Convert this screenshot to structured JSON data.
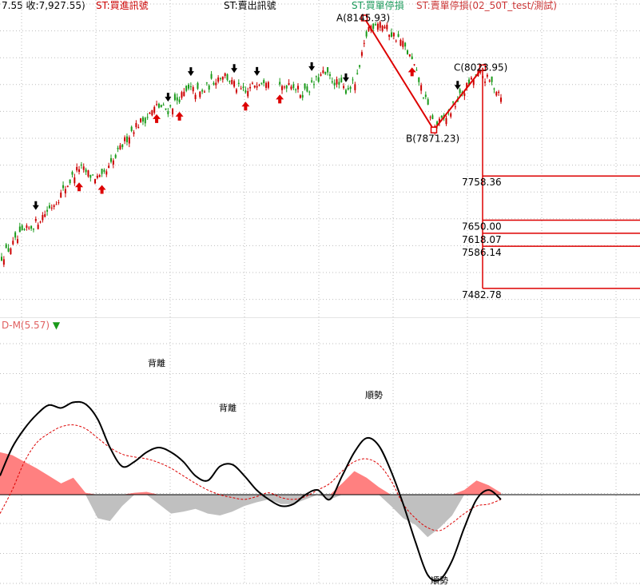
{
  "header": {
    "price_info": "7.55 收:7,927.55)",
    "signals": [
      {
        "text": "ST:買進訊號",
        "color": "#cc0000"
      },
      {
        "text": "ST:賣出訊號",
        "color": "#000000"
      },
      {
        "text": "ST:買單停損",
        "color": "#1a9a5a"
      },
      {
        "text": "ST:賣單停損(02_50T_test/測試)",
        "color": "#cc3333"
      }
    ]
  },
  "oscillator_panel": {
    "label": "D-M(5.57)",
    "label_color": "#e06060",
    "marker_color": "#1a9a1a"
  },
  "colors": {
    "up_candle": "#cc0000",
    "down_candle": "#1a9a1a",
    "abc_line": "#dd0000",
    "level_box": "#dd0000",
    "grid": "#bdbdbd",
    "hist_pos": "#ff8080",
    "hist_neg": "#c0c0c0",
    "osc_line": "#000000",
    "osc_signal": "#dd0000"
  },
  "chart_data": [
    {
      "type": "candlestick",
      "x": "bar index",
      "abc_pattern": [
        {
          "label": "A(8145.93)",
          "price": 8145.93
        },
        {
          "label": "B(7871.23)",
          "price": 7871.23
        },
        {
          "label": "C(8023.95)",
          "price": 8023.95
        }
      ],
      "projection_levels": [
        {
          "label": "7758.36",
          "value": 7758.36
        },
        {
          "label": "7650.00",
          "value": 7650.0
        },
        {
          "label": "7618.07",
          "value": 7618.07
        },
        {
          "label": "7586.14",
          "value": 7586.14
        },
        {
          "label": "7482.78",
          "value": 7482.78
        }
      ],
      "close_path": [
        7560,
        7590,
        7620,
        7640,
        7670,
        7700,
        7740,
        7780,
        7760,
        7750,
        7790,
        7840,
        7880,
        7900,
        7930,
        7920,
        7950,
        7970,
        7960,
        7990,
        8010,
        7980,
        7960,
        7990,
        8000,
        7970,
        7990,
        7960,
        7980,
        8010,
        7990,
        7970,
        7990,
        8120,
        8140,
        8110,
        8090,
        8040,
        7960,
        7880,
        7900,
        7940,
        7980,
        8010,
        7990,
        7960
      ],
      "signal_arrows": [
        {
          "bar": 3,
          "kind": "sell"
        },
        {
          "bar": 7,
          "kind": "buy"
        },
        {
          "bar": 9,
          "kind": "buy"
        },
        {
          "bar": 14,
          "kind": "buy"
        },
        {
          "bar": 15,
          "kind": "sell"
        },
        {
          "bar": 16,
          "kind": "buy"
        },
        {
          "bar": 17,
          "kind": "sell"
        },
        {
          "bar": 21,
          "kind": "sell"
        },
        {
          "bar": 22,
          "kind": "buy"
        },
        {
          "bar": 23,
          "kind": "sell"
        },
        {
          "bar": 25,
          "kind": "buy"
        },
        {
          "bar": 28,
          "kind": "sell"
        },
        {
          "bar": 31,
          "kind": "sell"
        },
        {
          "bar": 37,
          "kind": "buy"
        },
        {
          "bar": 41,
          "kind": "sell"
        }
      ]
    },
    {
      "type": "line",
      "annotations": [
        "背離",
        "背離",
        "順勢",
        "順勢"
      ],
      "series": [
        {
          "values": [
            0.2,
            0.5,
            0.7,
            0.85,
            0.95,
            0.92,
            0.98,
            0.96,
            0.8,
            0.5,
            0.3,
            0.35,
            0.45,
            0.5,
            0.45,
            0.35,
            0.2,
            0.15,
            0.3,
            0.32,
            0.2,
            0.05,
            -0.05,
            -0.12,
            -0.1,
            0.0,
            0.05,
            -0.05,
            0.2,
            0.45,
            0.6,
            0.52,
            0.25,
            -0.1,
            -0.5,
            -0.85,
            -0.9,
            -0.7,
            -0.35,
            -0.05,
            0.05,
            -0.05
          ]
        },
        {
          "values": [
            -0.2,
            0.05,
            0.35,
            0.55,
            0.65,
            0.72,
            0.74,
            0.7,
            0.6,
            0.5,
            0.43,
            0.4,
            0.38,
            0.34,
            0.28,
            0.2,
            0.12,
            0.05,
            0.0,
            -0.03,
            -0.05,
            -0.02,
            0.02,
            -0.03,
            -0.05,
            -0.02,
            0.05,
            0.12,
            0.25,
            0.35,
            0.38,
            0.32,
            0.15,
            -0.1,
            -0.25,
            -0.35,
            -0.38,
            -0.3,
            -0.2,
            -0.12,
            -0.1,
            -0.05
          ]
        }
      ],
      "histogram": [
        0.45,
        0.42,
        0.35,
        0.28,
        0.2,
        0.12,
        0.18,
        0.02,
        -0.25,
        -0.28,
        -0.12,
        0.02,
        0.03,
        -0.1,
        -0.2,
        -0.18,
        -0.15,
        -0.2,
        -0.22,
        -0.18,
        -0.12,
        -0.08,
        -0.05,
        -0.1,
        -0.1,
        -0.05,
        0.0,
        -0.05,
        0.12,
        0.25,
        0.18,
        0.08,
        -0.12,
        -0.25,
        -0.32,
        -0.45,
        -0.35,
        -0.22,
        0.05,
        0.15,
        0.1,
        0.02
      ]
    }
  ]
}
